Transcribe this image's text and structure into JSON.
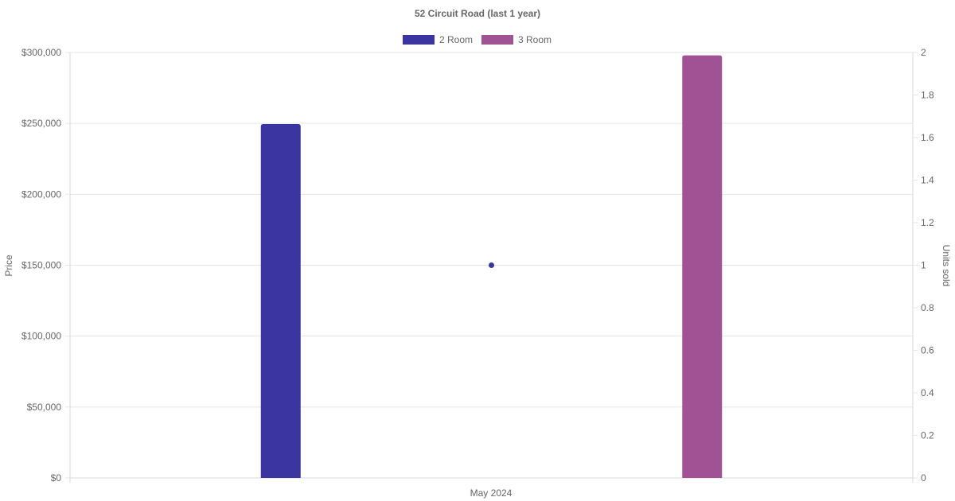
{
  "chart_data": {
    "type": "bar",
    "title": "52 Circuit Road (last 1 year)",
    "categories": [
      "May 2024"
    ],
    "series": [
      {
        "name": "2 Room",
        "axis": "left",
        "values": [
          249500
        ],
        "color": "#3a35a0"
      },
      {
        "name": "3 Room",
        "axis": "left",
        "values": [
          298000
        ],
        "color": "#a05295"
      }
    ],
    "units_sold": {
      "axis": "right",
      "type": "scatter",
      "values": [
        1
      ],
      "color": "#3a35a0"
    },
    "ylabel": "Price",
    "y2label": "Units sold",
    "ylim": [
      0,
      300000
    ],
    "y2lim": [
      0,
      2
    ],
    "y_ticks": [
      "$0",
      "$50,000",
      "$100,000",
      "$150,000",
      "$200,000",
      "$250,000",
      "$300,000"
    ],
    "y2_ticks": [
      "0",
      "0.2",
      "0.4",
      "0.6",
      "0.8",
      "1",
      "1.2",
      "1.4",
      "1.6",
      "1.8",
      "2"
    ],
    "grid": true,
    "legend": "top-center"
  }
}
